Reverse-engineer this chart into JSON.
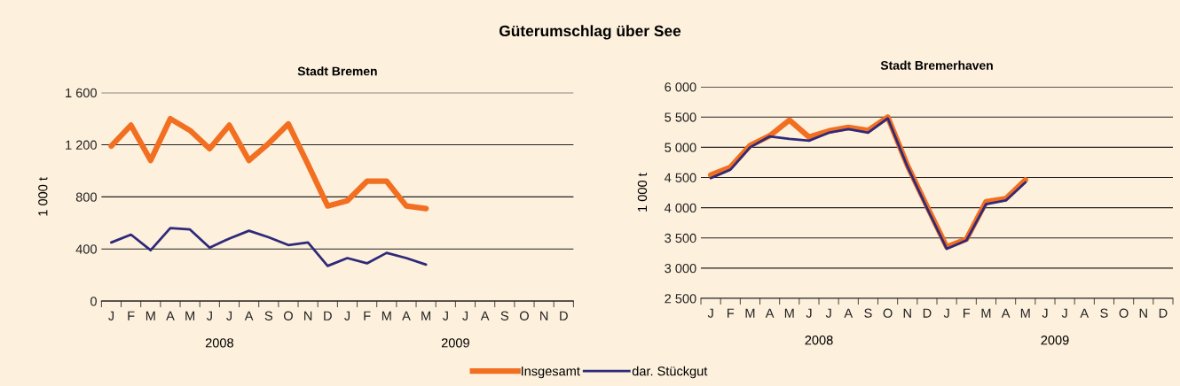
{
  "chart_data": [
    {
      "type": "line",
      "title": "Güterumschlag über See",
      "subtitle": "Stadt Bremen",
      "ylabel": "1 000 t",
      "categories": [
        "J",
        "F",
        "M",
        "A",
        "M",
        "J",
        "J",
        "A",
        "S",
        "O",
        "N",
        "D",
        "J",
        "F",
        "M",
        "A",
        "M",
        "J",
        "J",
        "A",
        "S",
        "O",
        "N",
        "D"
      ],
      "series": [
        {
          "name": "Insgesamt",
          "color": "#f26f21",
          "values": [
            1190,
            1350,
            1080,
            1400,
            1310,
            1170,
            1350,
            1080,
            1210,
            1360,
            1050,
            730,
            770,
            920,
            920,
            730,
            710,
            null,
            null,
            null,
            null,
            null,
            null,
            null
          ]
        },
        {
          "name": "dar. Stückgut",
          "color": "#2e2a7a",
          "values": [
            450,
            510,
            390,
            560,
            550,
            410,
            480,
            540,
            490,
            430,
            450,
            270,
            330,
            290,
            370,
            330,
            280,
            null,
            null,
            null,
            null,
            null,
            null,
            null
          ]
        }
      ],
      "ylim": [
        0,
        1600
      ],
      "yticks": [
        0,
        400,
        800,
        {
          "value": 1200,
          "label": "1 200"
        },
        {
          "value": 1600,
          "label": "1 600"
        }
      ],
      "grid": "y",
      "legend": "bottom",
      "annotations": [
        "2008",
        "2009"
      ]
    },
    {
      "type": "line",
      "title": "Stadt Bremerhaven",
      "ylabel": "1 000 t",
      "categories": [
        "J",
        "F",
        "M",
        "A",
        "M",
        "J",
        "J",
        "A",
        "S",
        "O",
        "N",
        "D",
        "J",
        "F",
        "M",
        "A",
        "M",
        "J",
        "J",
        "A",
        "S",
        "O",
        "N",
        "D"
      ],
      "series": [
        {
          "name": "Insgesamt",
          "color": "#f26f21",
          "values": [
            4540,
            4670,
            5030,
            5190,
            5450,
            5170,
            5270,
            5330,
            5280,
            5500,
            4700,
            4020,
            3350,
            3480,
            4100,
            4150,
            4460,
            null,
            null,
            null,
            null,
            null,
            null,
            null
          ]
        },
        {
          "name": "dar. Stückgut",
          "color": "#2e2a7a",
          "values": [
            4490,
            4630,
            5000,
            5180,
            5140,
            5110,
            5240,
            5300,
            5240,
            5480,
            4680,
            3990,
            3320,
            3460,
            4060,
            4120,
            4420,
            null,
            null,
            null,
            null,
            null,
            null,
            null
          ]
        }
      ],
      "ylim": [
        2500,
        6000
      ],
      "yticks": [
        {
          "value": 2500,
          "label": "2 500"
        },
        {
          "value": 3000,
          "label": "3 000"
        },
        {
          "value": 3500,
          "label": "3 500"
        },
        {
          "value": 4000,
          "label": "4 000"
        },
        {
          "value": 4500,
          "label": "4 500"
        },
        {
          "value": 5000,
          "label": "5 000"
        },
        {
          "value": 5500,
          "label": "5 500"
        },
        {
          "value": 6000,
          "label": "6 000"
        }
      ],
      "grid": "y",
      "legend": "bottom",
      "annotations": [
        "2008",
        "2009"
      ]
    }
  ]
}
